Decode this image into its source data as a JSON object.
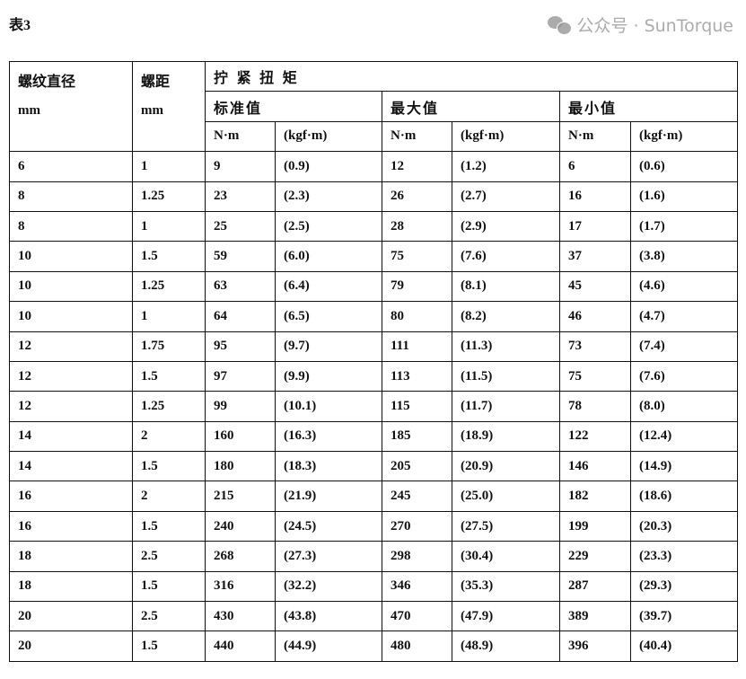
{
  "title": "表3",
  "header": {
    "diameter": "螺纹直径",
    "diameter_unit": "mm",
    "pitch": "螺距",
    "pitch_unit": "mm",
    "torque": "拧 紧 扭 矩",
    "standard": "标准值",
    "max": "最大值",
    "min": "最小值",
    "unit_nm": "N·m",
    "unit_kgf": "(kgf·m)"
  },
  "rows": [
    [
      "6",
      "1",
      "9",
      "(0.9)",
      "12",
      "(1.2)",
      "6",
      "(0.6)"
    ],
    [
      "8",
      "1.25",
      "23",
      "(2.3)",
      "26",
      "(2.7)",
      "16",
      "(1.6)"
    ],
    [
      "8",
      "1",
      "25",
      "(2.5)",
      "28",
      "(2.9)",
      "17",
      "(1.7)"
    ],
    [
      "10",
      "1.5",
      "59",
      "(6.0)",
      "75",
      "(7.6)",
      "37",
      "(3.8)"
    ],
    [
      "10",
      "1.25",
      "63",
      "(6.4)",
      "79",
      "(8.1)",
      "45",
      "(4.6)"
    ],
    [
      "10",
      "1",
      "64",
      "(6.5)",
      "80",
      "(8.2)",
      "46",
      "(4.7)"
    ],
    [
      "12",
      "1.75",
      "95",
      "(9.7)",
      "111",
      "(11.3)",
      "73",
      "(7.4)"
    ],
    [
      "12",
      "1.5",
      "97",
      "(9.9)",
      "113",
      "(11.5)",
      "75",
      "(7.6)"
    ],
    [
      "12",
      "1.25",
      "99",
      "(10.1)",
      "115",
      "(11.7)",
      "78",
      "(8.0)"
    ],
    [
      "14",
      "2",
      "160",
      "(16.3)",
      "185",
      "(18.9)",
      "122",
      "(12.4)"
    ],
    [
      "14",
      "1.5",
      "180",
      "(18.3)",
      "205",
      "(20.9)",
      "146",
      "(14.9)"
    ],
    [
      "16",
      "2",
      "215",
      "(21.9)",
      "245",
      "(25.0)",
      "182",
      "(18.6)"
    ],
    [
      "16",
      "1.5",
      "240",
      "(24.5)",
      "270",
      "(27.5)",
      "199",
      "(20.3)"
    ],
    [
      "18",
      "2.5",
      "268",
      "(27.3)",
      "298",
      "(30.4)",
      "229",
      "(23.3)"
    ],
    [
      "18",
      "1.5",
      "316",
      "(32.2)",
      "346",
      "(35.3)",
      "287",
      "(29.3)"
    ],
    [
      "20",
      "2.5",
      "430",
      "(43.8)",
      "470",
      "(47.9)",
      "389",
      "(39.7)"
    ],
    [
      "20",
      "1.5",
      "440",
      "(44.9)",
      "480",
      "(48.9)",
      "396",
      "(40.4)"
    ]
  ],
  "watermark": "公众号 · SunTorque"
}
